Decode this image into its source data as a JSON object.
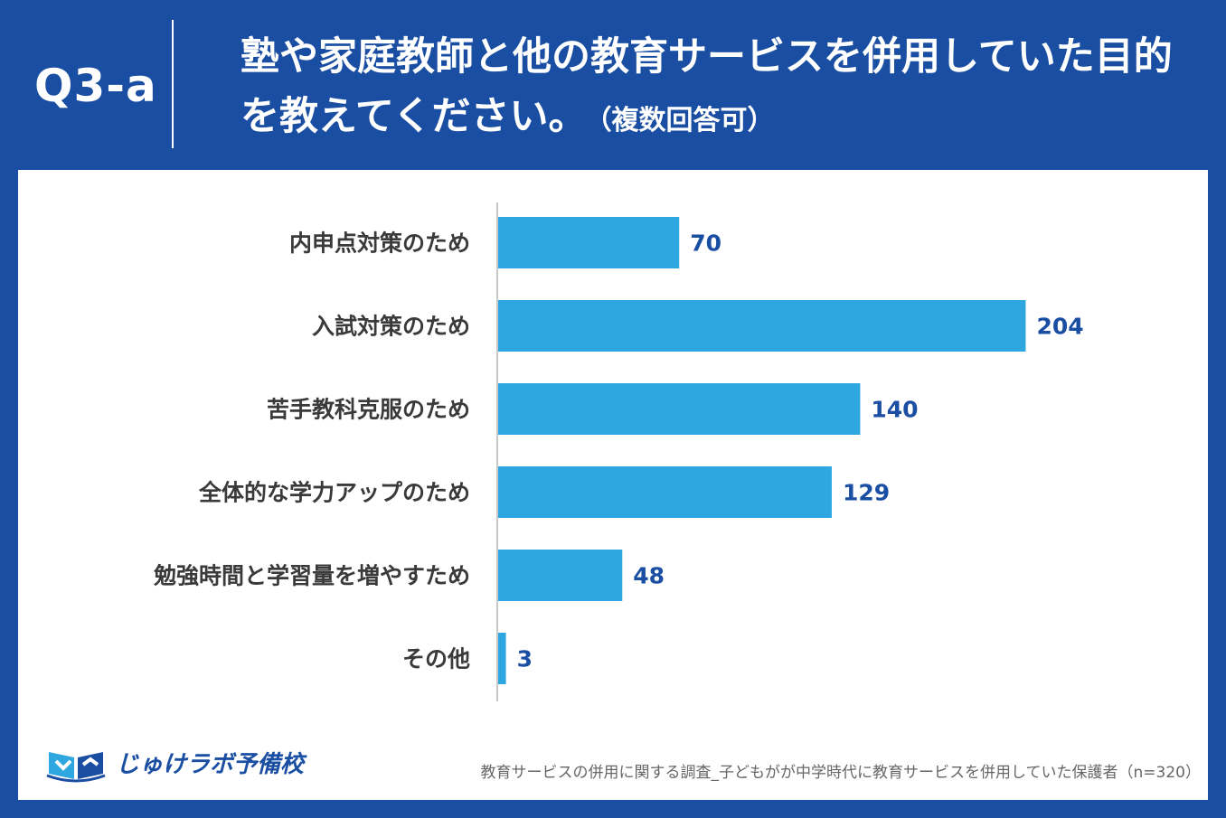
{
  "header": {
    "question_number": "Q3-a",
    "title": "塾や家庭教師と他の教育サービスを併用していた目的を教えてください。",
    "note": "（複数回答可）"
  },
  "footer": {
    "logo_text": "じゅけラボ予備校",
    "source": "教育サービスの併用に関する調査_子どもがが中学時代に教育サービスを併用していた保護者（n=320）"
  },
  "colors": {
    "bar": "#2ea6e0",
    "value_text": "#1a4ea3",
    "header_bg": "#1a4ea3"
  },
  "chart_data": {
    "type": "bar",
    "orientation": "horizontal",
    "categories": [
      "内申点対策のため",
      "入試対策のため",
      "苦手教科克服のため",
      "全体的な学力アップのため",
      "勉強時間と学習量を増やすため",
      "その他"
    ],
    "values": [
      70,
      204,
      140,
      129,
      48,
      3
    ],
    "grid": false
  }
}
